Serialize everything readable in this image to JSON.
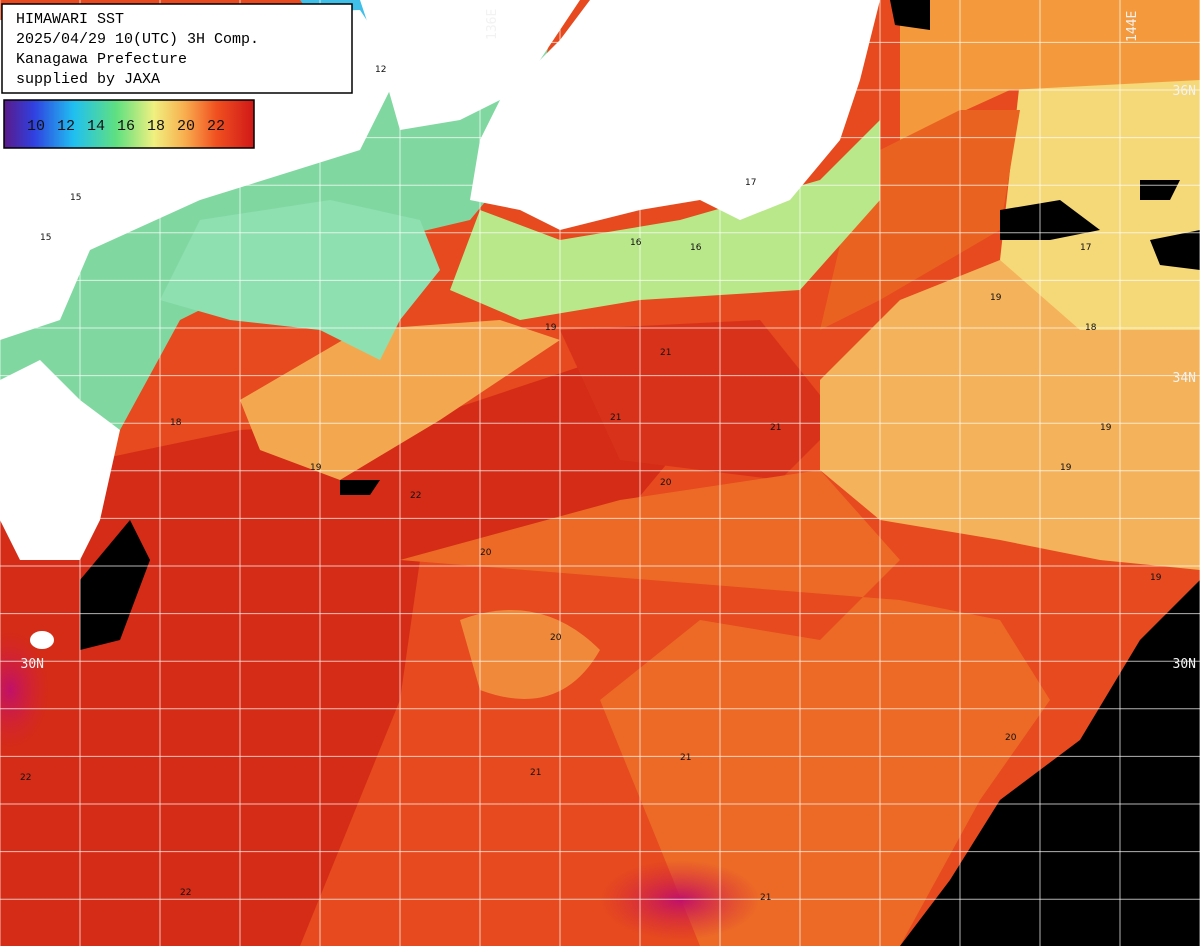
{
  "header": {
    "lines": [
      "HIMAWARI SST",
      "2025/04/29 10(UTC) 3H Comp.",
      "Kanagawa Prefecture",
      "supplied by JAXA"
    ]
  },
  "colorbar": {
    "labels": [
      10,
      12,
      14,
      16,
      18,
      20,
      22
    ]
  },
  "grid_labels": [
    "36N",
    "34N",
    "30N",
    "30N",
    "144E",
    "136E"
  ],
  "contour_labels": [
    "15",
    "15",
    "12",
    "16",
    "16",
    "17",
    "18",
    "19",
    "19",
    "19",
    "19",
    "20",
    "20",
    "20",
    "21",
    "21",
    "21",
    "21",
    "22",
    "22",
    "19",
    "19",
    "18",
    "17",
    "20",
    "21",
    "22",
    "21"
  ]
}
